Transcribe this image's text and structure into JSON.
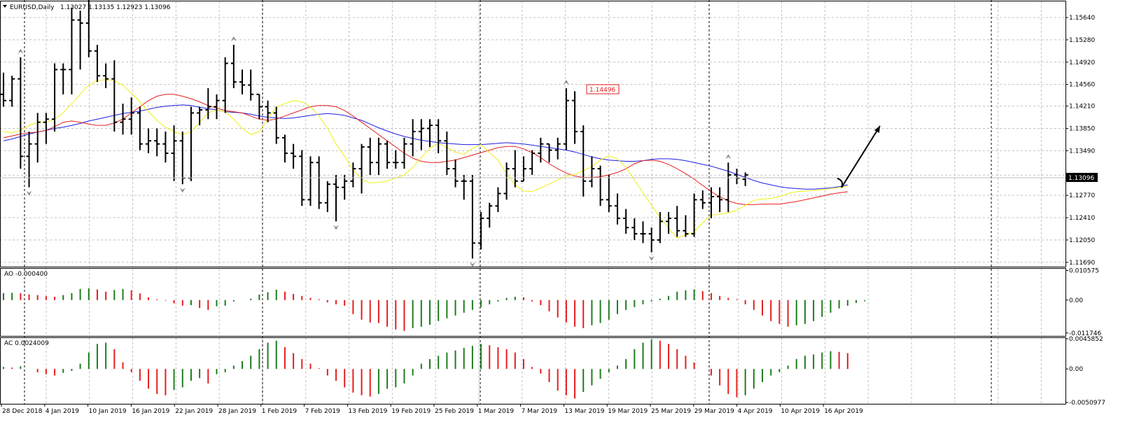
{
  "header": {
    "title": "EURUSD,Daily",
    "ohlc": "1.13027 1.13135 1.12923 1.13096"
  },
  "colors": {
    "bull": "#1e7d1e",
    "bear": "#e61e1e",
    "ma_blue": "#1e1ee6",
    "ma_red": "#e61e1e",
    "ma_yellow": "#f0f014",
    "grid": "#c0c0c0",
    "price_tag_bg": "#000000"
  },
  "chart_data": [
    {
      "type": "ohlc-bar",
      "name": "EURUSD,Daily",
      "price_scale_labels": [
        "1.15640",
        "1.15280",
        "1.14920",
        "1.14560",
        "1.14210",
        "1.13850",
        "1.13490",
        "1.13096",
        "1.12770",
        "1.12410",
        "1.12050",
        "1.11690"
      ],
      "ylim": [
        1.1162,
        1.159
      ],
      "current_price": "1.13096",
      "annotation_price": "1.14496",
      "x_labels": [
        "28 Dec 2018",
        "4 Jan 2019",
        "10 Jan 2019",
        "16 Jan 2019",
        "22 Jan 2019",
        "28 Jan 2019",
        "1 Feb 2019",
        "7 Feb 2019",
        "13 Feb 2019",
        "19 Feb 2019",
        "25 Feb 2019",
        "1 Mar 2019",
        "7 Mar 2019",
        "13 Mar 2019",
        "19 Mar 2019",
        "25 Mar 2019",
        "29 Mar 2019",
        "4 Apr 2019",
        "10 Apr 2019",
        "16 Apr 2019"
      ],
      "bars": [
        [
          1.144,
          1.1475,
          1.142,
          1.143
        ],
        [
          1.143,
          1.147,
          1.142,
          1.1465
        ],
        [
          1.1465,
          1.15,
          1.132,
          1.134
        ],
        [
          1.134,
          1.138,
          1.129,
          1.136
        ],
        [
          1.136,
          1.141,
          1.133,
          1.1395
        ],
        [
          1.1395,
          1.141,
          1.136,
          1.14
        ],
        [
          1.14,
          1.149,
          1.138,
          1.148
        ],
        [
          1.148,
          1.149,
          1.144,
          1.148
        ],
        [
          1.148,
          1.158,
          1.144,
          1.156
        ],
        [
          1.156,
          1.1575,
          1.148,
          1.1555
        ],
        [
          1.1555,
          1.16,
          1.15,
          1.151
        ],
        [
          1.151,
          1.152,
          1.146,
          1.147
        ],
        [
          1.147,
          1.149,
          1.145,
          1.1465
        ],
        [
          1.1465,
          1.1495,
          1.138,
          1.1395
        ],
        [
          1.1395,
          1.1425,
          1.1375,
          1.14
        ],
        [
          1.14,
          1.1435,
          1.1375,
          1.141
        ],
        [
          1.141,
          1.142,
          1.135,
          1.136
        ],
        [
          1.136,
          1.1385,
          1.1345,
          1.1365
        ],
        [
          1.1365,
          1.1385,
          1.134,
          1.136
        ],
        [
          1.136,
          1.138,
          1.133,
          1.1345
        ],
        [
          1.1345,
          1.139,
          1.13,
          1.1365
        ],
        [
          1.1365,
          1.138,
          1.1295,
          1.1305
        ],
        [
          1.1305,
          1.142,
          1.13,
          1.141
        ],
        [
          1.141,
          1.142,
          1.139,
          1.1415
        ],
        [
          1.1415,
          1.145,
          1.14,
          1.142
        ],
        [
          1.142,
          1.144,
          1.14,
          1.143
        ],
        [
          1.143,
          1.15,
          1.141,
          1.149
        ],
        [
          1.149,
          1.152,
          1.145,
          1.146
        ],
        [
          1.146,
          1.148,
          1.144,
          1.1455
        ],
        [
          1.1455,
          1.148,
          1.143,
          1.144
        ],
        [
          1.144,
          1.144,
          1.14,
          1.142
        ],
        [
          1.142,
          1.143,
          1.1395,
          1.141
        ],
        [
          1.141,
          1.142,
          1.136,
          1.137
        ],
        [
          1.137,
          1.1375,
          1.133,
          1.1345
        ],
        [
          1.1345,
          1.136,
          1.132,
          1.134
        ],
        [
          1.134,
          1.135,
          1.126,
          1.127
        ],
        [
          1.127,
          1.134,
          1.126,
          1.133
        ],
        [
          1.133,
          1.134,
          1.1255,
          1.1265
        ],
        [
          1.1265,
          1.13,
          1.125,
          1.1295
        ],
        [
          1.1295,
          1.131,
          1.1235,
          1.129
        ],
        [
          1.129,
          1.131,
          1.127,
          1.13
        ],
        [
          1.13,
          1.133,
          1.129,
          1.132
        ],
        [
          1.132,
          1.136,
          1.128,
          1.1355
        ],
        [
          1.1355,
          1.137,
          1.131,
          1.133
        ],
        [
          1.133,
          1.137,
          1.131,
          1.136
        ],
        [
          1.136,
          1.1365,
          1.132,
          1.133
        ],
        [
          1.133,
          1.135,
          1.132,
          1.133
        ],
        [
          1.133,
          1.137,
          1.132,
          1.136
        ],
        [
          1.136,
          1.14,
          1.134,
          1.138
        ],
        [
          1.138,
          1.14,
          1.135,
          1.1385
        ],
        [
          1.1385,
          1.14,
          1.1355,
          1.139
        ],
        [
          1.139,
          1.14,
          1.1345,
          1.1365
        ],
        [
          1.1365,
          1.138,
          1.131,
          1.132
        ],
        [
          1.132,
          1.1335,
          1.129,
          1.13
        ],
        [
          1.13,
          1.131,
          1.127,
          1.13
        ],
        [
          1.13,
          1.131,
          1.1175,
          1.12
        ],
        [
          1.12,
          1.125,
          1.119,
          1.124
        ],
        [
          1.124,
          1.1265,
          1.1225,
          1.126
        ],
        [
          1.126,
          1.129,
          1.125,
          1.128
        ],
        [
          1.128,
          1.133,
          1.127,
          1.132
        ],
        [
          1.132,
          1.135,
          1.129,
          1.13
        ],
        [
          1.13,
          1.134,
          1.13,
          1.132
        ],
        [
          1.132,
          1.135,
          1.131,
          1.1345
        ],
        [
          1.1345,
          1.137,
          1.133,
          1.136
        ],
        [
          1.136,
          1.136,
          1.133,
          1.135
        ],
        [
          1.135,
          1.137,
          1.1335,
          1.136
        ],
        [
          1.136,
          1.145,
          1.135,
          1.143
        ],
        [
          1.143,
          1.1445,
          1.136,
          1.138
        ],
        [
          1.138,
          1.139,
          1.1275,
          1.13
        ],
        [
          1.13,
          1.134,
          1.129,
          1.132
        ],
        [
          1.132,
          1.1325,
          1.126,
          1.127
        ],
        [
          1.127,
          1.131,
          1.125,
          1.126
        ],
        [
          1.126,
          1.128,
          1.123,
          1.124
        ],
        [
          1.124,
          1.1255,
          1.1215,
          1.1225
        ],
        [
          1.1225,
          1.124,
          1.1205,
          1.1215
        ],
        [
          1.1215,
          1.1235,
          1.12,
          1.1215
        ],
        [
          1.1215,
          1.1225,
          1.1185,
          1.1205
        ],
        [
          1.1205,
          1.125,
          1.12,
          1.1235
        ],
        [
          1.1235,
          1.125,
          1.1215,
          1.124
        ],
        [
          1.124,
          1.126,
          1.121,
          1.122
        ],
        [
          1.122,
          1.1245,
          1.121,
          1.1215
        ],
        [
          1.1215,
          1.128,
          1.121,
          1.127
        ],
        [
          1.127,
          1.1285,
          1.1255,
          1.1265
        ],
        [
          1.1265,
          1.129,
          1.124,
          1.1275
        ],
        [
          1.1275,
          1.129,
          1.125,
          1.127
        ],
        [
          1.127,
          1.133,
          1.125,
          1.131
        ],
        [
          1.131,
          1.132,
          1.1295,
          1.1305
        ],
        [
          1.1303,
          1.1314,
          1.1292,
          1.131
        ]
      ],
      "moving_averages": {
        "blue": [
          1.1365,
          1.1368,
          1.1372,
          1.1376,
          1.1379,
          1.1382,
          1.1385,
          1.1387,
          1.139,
          1.1393,
          1.1397,
          1.14,
          1.1403,
          1.1406,
          1.1409,
          1.1411,
          1.1413,
          1.1416,
          1.1419,
          1.1421,
          1.1422,
          1.1423,
          1.1422,
          1.1419,
          1.1417,
          1.1415,
          1.1412,
          1.1411,
          1.141,
          1.1408,
          1.1405,
          1.1403,
          1.1402,
          1.1401,
          1.1402,
          1.1404,
          1.1406,
          1.1408,
          1.1409,
          1.1408,
          1.1406,
          1.1402,
          1.1398,
          1.1392,
          1.1386,
          1.1381,
          1.1376,
          1.1372,
          1.1369,
          1.1366,
          1.1364,
          1.1362,
          1.1361,
          1.136,
          1.1359,
          1.1359,
          1.1359,
          1.136,
          1.1361,
          1.1362,
          1.1361,
          1.136,
          1.1358,
          1.1356,
          1.1354,
          1.1352,
          1.135,
          1.1347,
          1.1343,
          1.1339,
          1.1336,
          1.1334,
          1.1333,
          1.1332,
          1.1332,
          1.1333,
          1.1335,
          1.1336,
          1.1336,
          1.1335,
          1.1333,
          1.133,
          1.1327,
          1.1324,
          1.132,
          1.1316,
          1.1311,
          1.1306,
          1.1301,
          1.1297,
          1.1294,
          1.1291,
          1.1289,
          1.1288,
          1.1287,
          1.1287,
          1.1288,
          1.1289,
          1.1291,
          1.1294
        ],
        "red": [
          1.137,
          1.1373,
          1.1376,
          1.1378,
          1.1379,
          1.1382,
          1.1388,
          1.1395,
          1.1397,
          1.1395,
          1.1392,
          1.139,
          1.139,
          1.1394,
          1.14,
          1.141,
          1.142,
          1.143,
          1.1437,
          1.144,
          1.144,
          1.1437,
          1.1433,
          1.1428,
          1.1422,
          1.1418,
          1.1414,
          1.1412,
          1.141,
          1.1405,
          1.14,
          1.1398,
          1.14,
          1.1405,
          1.141,
          1.1415,
          1.142,
          1.1422,
          1.1422,
          1.142,
          1.1414,
          1.1405,
          1.1395,
          1.1385,
          1.1375,
          1.1365,
          1.1355,
          1.1345,
          1.1337,
          1.1332,
          1.133,
          1.133,
          1.1332,
          1.1334,
          1.1338,
          1.1342,
          1.1346,
          1.135,
          1.1354,
          1.1356,
          1.1356,
          1.1352,
          1.1346,
          1.1338,
          1.1328,
          1.132,
          1.1313,
          1.1308,
          1.1306,
          1.1306,
          1.1307,
          1.131,
          1.1314,
          1.132,
          1.1328,
          1.1333,
          1.1334,
          1.1332,
          1.1327,
          1.132,
          1.1312,
          1.1303,
          1.1293,
          1.1283,
          1.1275,
          1.1268,
          1.1264,
          1.1262,
          1.1262,
          1.1263,
          1.1263,
          1.1263,
          1.1265,
          1.1267,
          1.127,
          1.1273,
          1.1276,
          1.1279,
          1.1281,
          1.1283
        ],
        "yellow": [
          1.138,
          1.1378,
          1.1382,
          1.139,
          1.1395,
          1.1395,
          1.14,
          1.141,
          1.1425,
          1.144,
          1.1455,
          1.1462,
          1.1464,
          1.1462,
          1.1455,
          1.1442,
          1.1428,
          1.1412,
          1.1398,
          1.1387,
          1.138,
          1.1375,
          1.138,
          1.1395,
          1.141,
          1.1415,
          1.1412,
          1.14,
          1.1385,
          1.1375,
          1.138,
          1.14,
          1.142,
          1.1425,
          1.143,
          1.1428,
          1.142,
          1.1405,
          1.1385,
          1.136,
          1.134,
          1.1318,
          1.1303,
          1.1297,
          1.1298,
          1.13,
          1.1305,
          1.131,
          1.1322,
          1.1338,
          1.1353,
          1.1361,
          1.1354,
          1.1347,
          1.1343,
          1.1353,
          1.1359,
          1.1346,
          1.1334,
          1.1312,
          1.1294,
          1.1284,
          1.1283,
          1.1289,
          1.1295,
          1.1302,
          1.1308,
          1.1311,
          1.1317,
          1.1323,
          1.1334,
          1.1341,
          1.1336,
          1.1322,
          1.1302,
          1.1281,
          1.1261,
          1.1241,
          1.1224,
          1.1208,
          1.1213,
          1.1218,
          1.1233,
          1.1245,
          1.1247,
          1.1249,
          1.1253,
          1.1261,
          1.1269,
          1.1271,
          1.1272,
          1.1275,
          1.128,
          1.1283,
          1.1284,
          1.1285,
          1.1286,
          1.1288,
          1.129,
          1.1292
        ]
      }
    },
    {
      "type": "histogram",
      "name": "AO",
      "label": "AO -0.000400",
      "scale_labels": [
        "0.010575",
        "0.00",
        "-0.011746"
      ],
      "ylim": [
        -0.0128,
        0.0112
      ],
      "values": [
        0.0025,
        0.0026,
        0.0025,
        0.002,
        0.0018,
        0.0014,
        0.0012,
        0.0018,
        0.0025,
        0.004,
        0.0042,
        0.0038,
        0.003,
        0.0036,
        0.004,
        0.0035,
        0.0024,
        0.001,
        0.0003,
        -0.0002,
        -0.0012,
        -0.002,
        -0.0018,
        -0.0028,
        -0.0035,
        -0.0022,
        -0.002,
        -0.0005,
        0.0,
        0.0005,
        0.002,
        0.0028,
        0.0037,
        0.003,
        0.0022,
        0.0015,
        0.0008,
        0.0003,
        -0.0008,
        -0.0015,
        -0.002,
        -0.005,
        -0.007,
        -0.008,
        -0.0082,
        -0.0095,
        -0.0105,
        -0.011,
        -0.01,
        -0.0095,
        -0.0088,
        -0.0075,
        -0.0065,
        -0.0055,
        -0.0045,
        -0.0035,
        -0.0025,
        -0.0015,
        -0.0005,
        0.0008,
        0.0012,
        0.001,
        -0.0005,
        -0.0018,
        -0.004,
        -0.0062,
        -0.008,
        -0.0095,
        -0.01,
        -0.009,
        -0.0082,
        -0.007,
        -0.005,
        -0.0035,
        -0.0025,
        -0.0015,
        -0.0005,
        0.0005,
        0.0015,
        0.003,
        0.0035,
        0.0038,
        0.0032,
        0.0025,
        0.0015,
        0.0008,
        0.0003,
        -0.0015,
        -0.0035,
        -0.0055,
        -0.0075,
        -0.0085,
        -0.0095,
        -0.009,
        -0.0085,
        -0.0075,
        -0.006,
        -0.0045,
        -0.003,
        -0.002,
        -0.001,
        -0.0004
      ]
    },
    {
      "type": "histogram",
      "name": "AC",
      "label": "AC 0.0024009",
      "scale_labels": [
        "0.0045852",
        "0.00",
        "-0.0050977"
      ],
      "ylim": [
        -0.0053,
        0.0047
      ],
      "values": [
        0.0003,
        0.0002,
        0.0004,
        0.0,
        -0.0005,
        -0.0008,
        -0.001,
        -0.0006,
        -0.0003,
        0.0008,
        0.0025,
        0.0038,
        0.004,
        0.003,
        0.001,
        -0.0005,
        -0.0018,
        -0.003,
        -0.0038,
        -0.004,
        -0.0032,
        -0.0028,
        -0.0018,
        -0.0014,
        -0.0022,
        -0.0008,
        -0.0005,
        0.0005,
        0.0012,
        0.002,
        0.003,
        0.004,
        0.0043,
        0.0033,
        0.0024,
        0.0015,
        0.0008,
        0.0001,
        -0.001,
        -0.0018,
        -0.0028,
        -0.0036,
        -0.004,
        -0.0042,
        -0.0038,
        -0.003,
        -0.0028,
        -0.0022,
        -0.001,
        0.0008,
        0.0015,
        0.002,
        0.0025,
        0.0028,
        0.0032,
        0.0035,
        0.0038,
        0.0036,
        0.0033,
        0.003,
        0.0025,
        0.0015,
        0.0003,
        -0.0007,
        -0.002,
        -0.0033,
        -0.004,
        -0.0045,
        -0.0035,
        -0.0025,
        -0.0015,
        -0.0005,
        0.0005,
        0.0015,
        0.003,
        0.004,
        0.0045,
        0.0043,
        0.0038,
        0.003,
        0.002,
        0.001,
        0.0,
        -0.001,
        -0.0025,
        -0.0038,
        -0.0043,
        -0.004,
        -0.003,
        -0.002,
        -0.001,
        -0.0005,
        0.0005,
        0.0015,
        0.002,
        0.0022,
        0.0025,
        0.0027,
        0.0026,
        0.0024
      ]
    }
  ]
}
